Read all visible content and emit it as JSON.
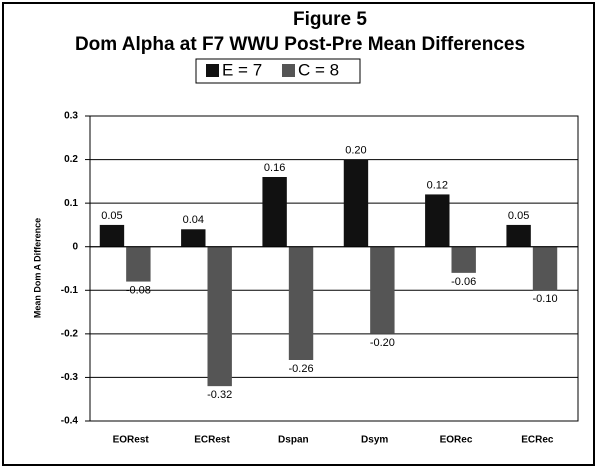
{
  "chart_data": {
    "type": "bar",
    "title": "Figure 5",
    "subtitle": "Dom Alpha at F7 WWU Post-Pre Mean Differences",
    "y_label": "Mean Dom A Difference",
    "categories": [
      "EORest",
      "ECRest",
      "Dspan",
      "Dsym",
      "EORec",
      "ECRec"
    ],
    "series": [
      {
        "name": "E = 7",
        "color": "#111111",
        "values": [
          0.05,
          0.04,
          0.16,
          0.2,
          0.12,
          0.05
        ],
        "value_labels": [
          "0.05",
          "0.04",
          "0.16",
          "0.20",
          "0.12",
          "0.05"
        ]
      },
      {
        "name": "C = 8",
        "color": "#555555",
        "values": [
          -0.08,
          -0.32,
          -0.26,
          -0.2,
          -0.06,
          -0.1
        ],
        "value_labels": [
          "-0.08",
          "-0.32",
          "-0.26",
          "-0.20",
          "-0.06",
          "-0.10"
        ]
      }
    ],
    "ylim": [
      -0.4,
      0.3
    ],
    "yticks": [
      -0.4,
      -0.3,
      -0.2,
      -0.1,
      0,
      0.1,
      0.2,
      0.3
    ],
    "grid": true
  }
}
